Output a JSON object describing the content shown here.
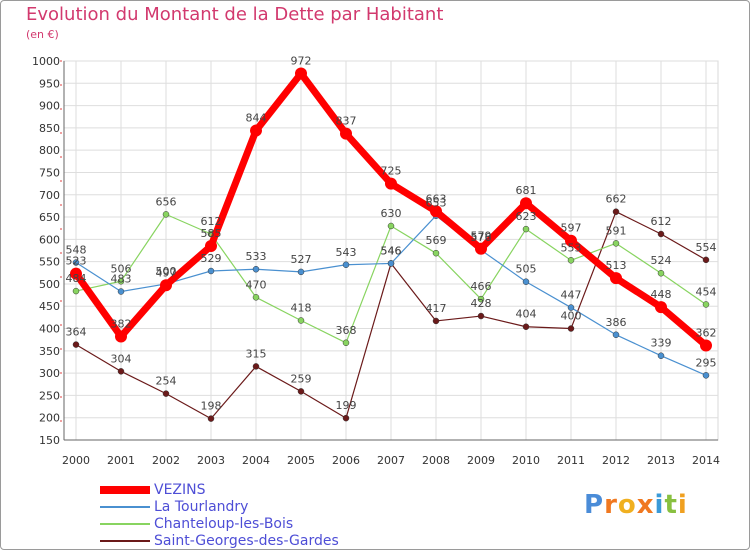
{
  "chart_data": {
    "type": "line",
    "title": "Evolution du Montant de la Dette par Habitant",
    "subtitle": "(en €)",
    "xlabel": "",
    "ylabel": "",
    "x": [
      "2000",
      "2001",
      "2002",
      "2003",
      "2004",
      "2005",
      "2006",
      "2007",
      "2008",
      "2009",
      "2010",
      "2011",
      "2012",
      "2013",
      "2014"
    ],
    "ylim": [
      150,
      1000
    ],
    "yticks": [
      150,
      200,
      250,
      300,
      350,
      400,
      450,
      500,
      550,
      600,
      650,
      700,
      750,
      800,
      850,
      900,
      950,
      1000
    ],
    "grid": true,
    "legend_position": "bottom-left",
    "series": [
      {
        "name": "VEZINS",
        "color": "#ff0000",
        "values": [
          523,
          382,
          497,
          585,
          844,
          972,
          837,
          725,
          663,
          579,
          681,
          597,
          513,
          448,
          362
        ]
      },
      {
        "name": "La Tourlandry",
        "color": "#4a90d0",
        "values": [
          548,
          483,
          500,
          529,
          533,
          527,
          543,
          546,
          653,
          576,
          505,
          447,
          386,
          339,
          295
        ]
      },
      {
        "name": "Chanteloup-les-Bois",
        "color": "#88d460",
        "values": [
          484,
          506,
          656,
          612,
          470,
          418,
          368,
          630,
          569,
          466,
          623,
          553,
          591,
          524,
          454
        ]
      },
      {
        "name": "Saint-Georges-des-Gardes",
        "color": "#6b1a1a",
        "values": [
          364,
          304,
          254,
          198,
          315,
          259,
          199,
          546,
          417,
          428,
          404,
          400,
          662,
          612,
          554
        ]
      }
    ]
  },
  "logo": {
    "letters": [
      "P",
      "r",
      "o",
      "x",
      "i",
      "t",
      "i"
    ],
    "colors": [
      "#4a8cd8",
      "#f07820",
      "#f0b020",
      "#f07820",
      "#3a9ad8",
      "#88c040",
      "#f0a020"
    ]
  }
}
